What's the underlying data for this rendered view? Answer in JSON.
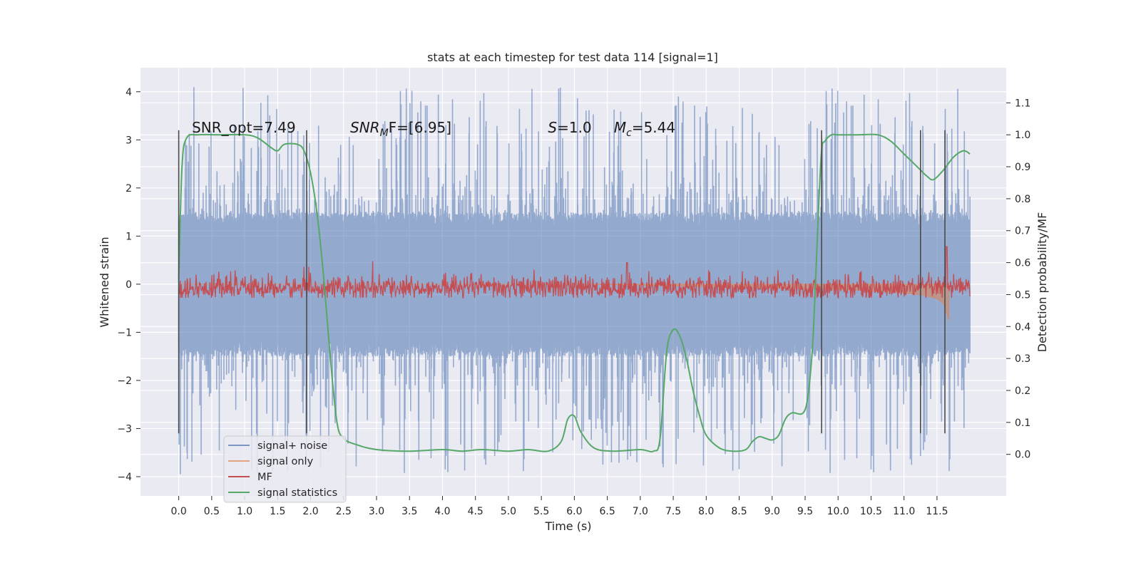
{
  "chart_data": {
    "type": "line",
    "title": "stats at each timestep for test data 114 [signal=1]",
    "xlabel": "Time (s)",
    "ylabel": "Whitened strain",
    "y2label": "Detection probability/MF",
    "xlim": [
      -0.58,
      12.55
    ],
    "ylim": [
      -4.4,
      4.5
    ],
    "y2lim": [
      -0.13,
      1.21
    ],
    "x_ticks": [
      0.0,
      0.5,
      1.0,
      1.5,
      2.0,
      2.5,
      3.0,
      3.5,
      4.0,
      4.5,
      5.0,
      5.5,
      6.0,
      6.5,
      7.0,
      7.5,
      8.0,
      8.5,
      9.0,
      9.5,
      10.0,
      10.5,
      11.0,
      11.5
    ],
    "x_tick_labels": [
      "0.0",
      "0.5",
      "1.0",
      "1.5",
      "2.0",
      "2.5",
      "3.0",
      "3.5",
      "4.0",
      "4.5",
      "5.0",
      "5.5",
      "6.0",
      "6.5",
      "7.0",
      "7.5",
      "8.0",
      "8.5",
      "9.0",
      "9.5",
      "10.0",
      "10.5",
      "11.0",
      "11.5"
    ],
    "y_ticks": [
      -4,
      -3,
      -2,
      -1,
      0,
      1,
      2,
      3,
      4
    ],
    "y_tick_labels": [
      "−4",
      "−3",
      "−2",
      "−1",
      "0",
      "1",
      "2",
      "3",
      "4"
    ],
    "y2_ticks": [
      0.0,
      0.1,
      0.2,
      0.3,
      0.4,
      0.5,
      0.6,
      0.7,
      0.8,
      0.9,
      1.0,
      1.1
    ],
    "y2_tick_labels": [
      "0.0",
      "0.1",
      "0.2",
      "0.3",
      "0.4",
      "0.5",
      "0.6",
      "0.7",
      "0.8",
      "0.9",
      "1.0",
      "1.1"
    ],
    "grid": true,
    "legend_position": "lower-left",
    "annotations": [
      {
        "id": "snr-opt",
        "text": "SNR_opt=7.49",
        "x": 0.2,
        "y": 3.15
      },
      {
        "id": "snr-mf",
        "main": "SNR",
        "sub": "M",
        "rest": "F=[6.95]",
        "x": 2.6,
        "y": 3.15
      },
      {
        "id": "s",
        "main": "S",
        "rest": "=1.0",
        "x": 5.6,
        "y": 3.15
      },
      {
        "id": "mc",
        "main": "M",
        "sub": "c",
        "rest": "=5.44",
        "x": 6.6,
        "y": 3.15
      }
    ],
    "vertical_markers": [
      0.0,
      1.94,
      9.75,
      11.25,
      11.62
    ],
    "marker_range": [
      -3.1,
      3.2
    ],
    "series": [
      {
        "name": "signal+ noise",
        "color": "#4c72b0",
        "opacity": 0.55,
        "axis": "left",
        "x_range": [
          0.0,
          12.0
        ],
        "samples": 2400,
        "envelope_core": 1.2,
        "envelope_peak_pos": 4.1,
        "envelope_peak_neg": -3.95
      },
      {
        "name": "signal only",
        "color": "#dd8452",
        "opacity": 0.55,
        "axis": "left",
        "x": [
          0.0,
          6.0,
          7.0,
          8.0,
          9.0,
          10.0,
          10.5,
          11.0,
          11.3,
          11.5,
          11.6,
          11.68
        ],
        "y": [
          0.0,
          0.0,
          -0.02,
          -0.05,
          -0.08,
          -0.11,
          -0.14,
          -0.18,
          -0.23,
          -0.3,
          -0.4,
          -0.75
        ]
      },
      {
        "name": "MF",
        "color": "#c44e52",
        "axis": "right",
        "x_range": [
          0.0,
          12.0
        ],
        "baseline": 0.52,
        "spread": 0.035,
        "spikes": [
          {
            "x": 6.8,
            "y": 0.6
          },
          {
            "x": 11.65,
            "y": 0.65
          }
        ]
      },
      {
        "name": "signal statistics",
        "color": "#55a868",
        "axis": "right",
        "x": [
          0.0,
          0.05,
          0.12,
          0.3,
          0.6,
          1.0,
          1.2,
          1.4,
          1.5,
          1.6,
          1.8,
          1.9,
          2.0,
          2.1,
          2.2,
          2.3,
          2.4,
          2.5,
          2.7,
          3.0,
          3.5,
          4.0,
          4.3,
          4.6,
          5.0,
          5.3,
          5.6,
          5.8,
          5.9,
          6.0,
          6.1,
          6.3,
          6.6,
          7.0,
          7.2,
          7.3,
          7.4,
          7.5,
          7.6,
          7.7,
          7.8,
          7.9,
          8.0,
          8.2,
          8.4,
          8.6,
          8.7,
          8.8,
          8.9,
          9.0,
          9.1,
          9.2,
          9.3,
          9.5,
          9.6,
          9.65,
          9.7,
          9.75,
          9.8,
          9.9,
          10.0,
          10.3,
          10.6,
          10.8,
          11.0,
          11.2,
          11.35,
          11.45,
          11.6,
          11.75,
          11.9,
          12.0
        ],
        "y": [
          0.55,
          0.9,
          0.99,
          1.0,
          1.0,
          1.0,
          0.99,
          0.96,
          0.95,
          0.97,
          0.97,
          0.95,
          0.88,
          0.75,
          0.55,
          0.3,
          0.1,
          0.05,
          0.03,
          0.015,
          0.01,
          0.015,
          0.01,
          0.015,
          0.01,
          0.015,
          0.01,
          0.04,
          0.11,
          0.12,
          0.07,
          0.02,
          0.01,
          0.015,
          0.01,
          0.05,
          0.32,
          0.39,
          0.37,
          0.3,
          0.2,
          0.12,
          0.06,
          0.02,
          0.01,
          0.015,
          0.04,
          0.055,
          0.05,
          0.045,
          0.06,
          0.11,
          0.13,
          0.14,
          0.3,
          0.5,
          0.75,
          0.95,
          0.98,
          1.0,
          1.0,
          1.0,
          1.0,
          0.98,
          0.94,
          0.9,
          0.87,
          0.86,
          0.89,
          0.93,
          0.95,
          0.94
        ]
      }
    ]
  }
}
